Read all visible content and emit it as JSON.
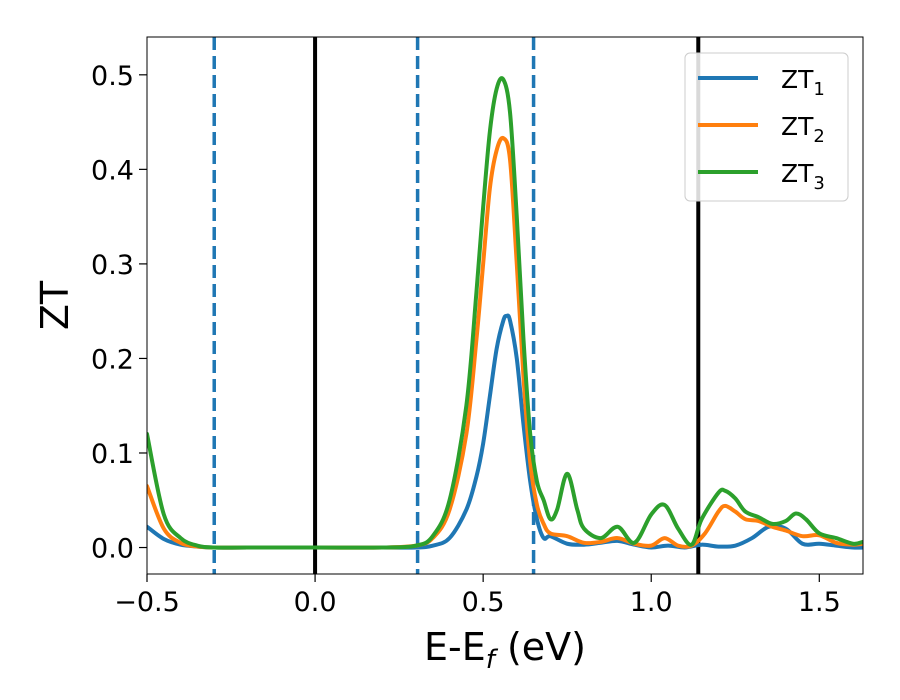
{
  "chart_data": {
    "type": "line",
    "title": "",
    "xlabel": {
      "main": "E-E",
      "sub": "f",
      "tail": " (eV)"
    },
    "ylabel": "ZT",
    "xlim": [
      -0.5,
      1.63
    ],
    "ylim": [
      -0.028,
      0.54
    ],
    "xticks": [
      {
        "value": -0.5,
        "label": "−0.5"
      },
      {
        "value": 0.0,
        "label": "0.0"
      },
      {
        "value": 0.5,
        "label": "0.5"
      },
      {
        "value": 1.0,
        "label": "1.0"
      },
      {
        "value": 1.5,
        "label": "1.5"
      }
    ],
    "yticks": [
      {
        "value": 0.0,
        "label": "0.0"
      },
      {
        "value": 0.1,
        "label": "0.1"
      },
      {
        "value": 0.2,
        "label": "0.2"
      },
      {
        "value": 0.3,
        "label": "0.3"
      },
      {
        "value": 0.4,
        "label": "0.4"
      },
      {
        "value": 0.5,
        "label": "0.5"
      }
    ],
    "grid": false,
    "legend_position": "top-right",
    "vlines": [
      {
        "x": -0.3,
        "style": "dashed",
        "color": "#1f77b4"
      },
      {
        "x": 0.0,
        "style": "solid",
        "color": "#000000"
      },
      {
        "x": 0.305,
        "style": "dashed",
        "color": "#1f77b4"
      },
      {
        "x": 0.65,
        "style": "dashed",
        "color": "#1f77b4"
      },
      {
        "x": 1.14,
        "style": "solid",
        "color": "#000000"
      }
    ],
    "series": [
      {
        "name": "ZT",
        "sub": "1",
        "color": "#1f77b4",
        "x": [
          -0.5,
          -0.45,
          -0.4,
          -0.35,
          -0.3,
          -0.2,
          0.0,
          0.2,
          0.3,
          0.35,
          0.4,
          0.45,
          0.48,
          0.5,
          0.52,
          0.54,
          0.56,
          0.57,
          0.58,
          0.6,
          0.62,
          0.64,
          0.66,
          0.68,
          0.7,
          0.75,
          0.8,
          0.85,
          0.9,
          0.95,
          1.0,
          1.05,
          1.1,
          1.15,
          1.2,
          1.25,
          1.3,
          1.35,
          1.4,
          1.45,
          1.5,
          1.55,
          1.6,
          1.63
        ],
        "values": [
          0.022,
          0.009,
          0.003,
          0.001,
          0.0,
          0.0,
          0.0,
          0.0,
          0.0,
          0.002,
          0.01,
          0.04,
          0.075,
          0.11,
          0.16,
          0.21,
          0.24,
          0.245,
          0.24,
          0.2,
          0.13,
          0.07,
          0.03,
          0.01,
          0.012,
          0.004,
          0.003,
          0.005,
          0.007,
          0.003,
          0.0,
          0.002,
          0.0,
          0.003,
          0.001,
          0.002,
          0.01,
          0.022,
          0.02,
          0.004,
          0.004,
          0.002,
          0.0,
          0.0
        ]
      },
      {
        "name": "ZT",
        "sub": "2",
        "color": "#ff7f0e",
        "x": [
          -0.5,
          -0.45,
          -0.4,
          -0.35,
          -0.3,
          -0.2,
          0.0,
          0.2,
          0.3,
          0.35,
          0.4,
          0.45,
          0.48,
          0.5,
          0.52,
          0.54,
          0.56,
          0.58,
          0.6,
          0.62,
          0.64,
          0.66,
          0.68,
          0.7,
          0.75,
          0.8,
          0.85,
          0.9,
          0.95,
          1.0,
          1.04,
          1.08,
          1.12,
          1.16,
          1.2,
          1.22,
          1.25,
          1.28,
          1.32,
          1.36,
          1.4,
          1.45,
          1.5,
          1.55,
          1.6,
          1.63
        ],
        "values": [
          0.065,
          0.02,
          0.005,
          0.001,
          0.0,
          0.0,
          0.0,
          0.0,
          0.002,
          0.01,
          0.04,
          0.12,
          0.22,
          0.3,
          0.38,
          0.42,
          0.433,
          0.41,
          0.3,
          0.18,
          0.09,
          0.045,
          0.025,
          0.015,
          0.012,
          0.005,
          0.006,
          0.01,
          0.004,
          0.002,
          0.01,
          0.002,
          0.002,
          0.015,
          0.038,
          0.044,
          0.038,
          0.03,
          0.028,
          0.022,
          0.018,
          0.012,
          0.013,
          0.005,
          0.003,
          0.004
        ]
      },
      {
        "name": "ZT",
        "sub": "3",
        "color": "#2ca02c",
        "x": [
          -0.5,
          -0.45,
          -0.4,
          -0.35,
          -0.3,
          -0.2,
          0.0,
          0.2,
          0.3,
          0.35,
          0.4,
          0.45,
          0.48,
          0.5,
          0.52,
          0.54,
          0.56,
          0.58,
          0.6,
          0.62,
          0.64,
          0.66,
          0.68,
          0.7,
          0.72,
          0.75,
          0.78,
          0.8,
          0.85,
          0.9,
          0.95,
          1.0,
          1.04,
          1.08,
          1.12,
          1.15,
          1.2,
          1.22,
          1.25,
          1.28,
          1.32,
          1.36,
          1.4,
          1.43,
          1.46,
          1.5,
          1.55,
          1.6,
          1.63
        ],
        "values": [
          0.12,
          0.035,
          0.01,
          0.002,
          0.0,
          0.0,
          0.0,
          0.0,
          0.002,
          0.012,
          0.05,
          0.15,
          0.27,
          0.36,
          0.44,
          0.485,
          0.495,
          0.46,
          0.35,
          0.22,
          0.12,
          0.07,
          0.05,
          0.03,
          0.04,
          0.078,
          0.04,
          0.02,
          0.01,
          0.022,
          0.005,
          0.035,
          0.045,
          0.02,
          0.003,
          0.03,
          0.058,
          0.06,
          0.052,
          0.038,
          0.032,
          0.025,
          0.028,
          0.036,
          0.03,
          0.015,
          0.01,
          0.004,
          0.006
        ]
      }
    ]
  }
}
